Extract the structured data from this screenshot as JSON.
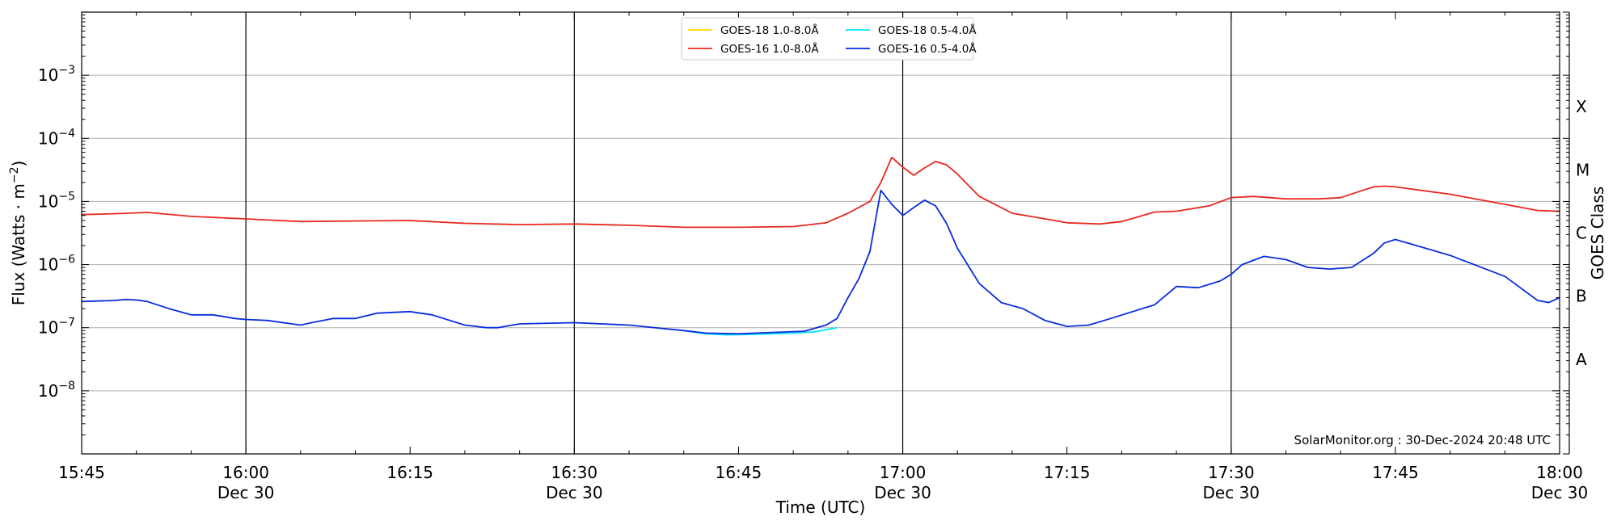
{
  "chart_data": {
    "type": "line",
    "xlabel": "Time (UTC)",
    "ylabel": "Flux (Watts · m⁻²)",
    "right_label": "GOES Class",
    "yscale": "log",
    "xlim": [
      0,
      135
    ],
    "ylim": [
      1e-09,
      0.01
    ],
    "grid": true,
    "legend_position": "top-center",
    "credit": "SolarMonitor.org : 30-Dec-2024 20:48 UTC",
    "y_ticks": [
      {
        "exp": -8,
        "label": "10",
        "sup": "−8"
      },
      {
        "exp": -7,
        "label": "10",
        "sup": "−7"
      },
      {
        "exp": -6,
        "label": "10",
        "sup": "−6"
      },
      {
        "exp": -5,
        "label": "10",
        "sup": "−5"
      },
      {
        "exp": -4,
        "label": "10",
        "sup": "−4"
      },
      {
        "exp": -3,
        "label": "10",
        "sup": "−3"
      }
    ],
    "x_ticks": [
      {
        "t": 0,
        "time": "15:45",
        "date": ""
      },
      {
        "t": 15,
        "time": "16:00",
        "date": "Dec 30"
      },
      {
        "t": 30,
        "time": "16:15",
        "date": ""
      },
      {
        "t": 45,
        "time": "16:30",
        "date": "Dec 30"
      },
      {
        "t": 60,
        "time": "16:45",
        "date": ""
      },
      {
        "t": 75,
        "time": "17:00",
        "date": "Dec 30"
      },
      {
        "t": 90,
        "time": "17:15",
        "date": ""
      },
      {
        "t": 105,
        "time": "17:30",
        "date": "Dec 30"
      },
      {
        "t": 120,
        "time": "17:45",
        "date": ""
      },
      {
        "t": 135,
        "time": "18:00",
        "date": "Dec 30"
      }
    ],
    "vlines": [
      15,
      45,
      75,
      105
    ],
    "classes": [
      {
        "label": "A",
        "exp": -7.5
      },
      {
        "label": "B",
        "exp": -6.5
      },
      {
        "label": "C",
        "exp": -5.5
      },
      {
        "label": "M",
        "exp": -4.5
      },
      {
        "label": "X",
        "exp": -3.5
      }
    ],
    "series": [
      {
        "name": "GOES-18 1.0-8.0Å",
        "color": "#ffd700",
        "x": [
          0,
          135
        ],
        "y": [
          null,
          null
        ]
      },
      {
        "name": "GOES-18 0.5-4.0Å",
        "color": "#00e5ff",
        "x": [
          55,
          57,
          59,
          61,
          63,
          65,
          67,
          69
        ],
        "y": [
          9e-08,
          8e-08,
          7.7e-08,
          7.8e-08,
          8e-08,
          8.2e-08,
          8.6e-08,
          1e-07
        ]
      },
      {
        "name": "GOES-16 1.0-8.0Å",
        "color": "#e8281e",
        "x": [
          0,
          3,
          6,
          10,
          15,
          20,
          25,
          30,
          35,
          40,
          45,
          50,
          55,
          60,
          65,
          68,
          70,
          72,
          73,
          74,
          75,
          76,
          77,
          78,
          79,
          80,
          82,
          85,
          88,
          90,
          93,
          95,
          98,
          100,
          103,
          105,
          107,
          110,
          113,
          115,
          117,
          118,
          119,
          120,
          125,
          130,
          133,
          135
        ],
        "y": [
          6.2e-06,
          6.4e-06,
          6.7e-06,
          5.8e-06,
          5.3e-06,
          4.8e-06,
          4.9e-06,
          5e-06,
          4.5e-06,
          4.3e-06,
          4.4e-06,
          4.2e-06,
          3.9e-06,
          3.9e-06,
          4e-06,
          4.6e-06,
          6.5e-06,
          1e-05,
          2e-05,
          5e-05,
          3.5e-05,
          2.6e-05,
          3.4e-05,
          4.3e-05,
          3.8e-05,
          2.7e-05,
          1.2e-05,
          6.5e-06,
          5.3e-06,
          4.6e-06,
          4.4e-06,
          4.8e-06,
          6.8e-06,
          7e-06,
          8.5e-06,
          1.15e-05,
          1.2e-05,
          1.1e-05,
          1.1e-05,
          1.15e-05,
          1.5e-05,
          1.7e-05,
          1.75e-05,
          1.7e-05,
          1.3e-05,
          9e-06,
          7.2e-06,
          7e-06
        ]
      },
      {
        "name": "GOES-16 0.5-4.0Å",
        "color": "#0a2cdc",
        "x": [
          0,
          3,
          4,
          5,
          6,
          8,
          10,
          12,
          14,
          15,
          17,
          20,
          21,
          23,
          25,
          27,
          30,
          32,
          35,
          37,
          38,
          40,
          45,
          50,
          55,
          57,
          60,
          63,
          66,
          68,
          69,
          70,
          71,
          72,
          73,
          74,
          75,
          76,
          77,
          78,
          79,
          80,
          82,
          84,
          86,
          88,
          90,
          92,
          94,
          96,
          98,
          100,
          102,
          104,
          105,
          106,
          108,
          110,
          112,
          114,
          116,
          118,
          119,
          120,
          125,
          130,
          133,
          134,
          135
        ],
        "y": [
          2.6e-07,
          2.7e-07,
          2.8e-07,
          2.75e-07,
          2.6e-07,
          2e-07,
          1.6e-07,
          1.6e-07,
          1.4e-07,
          1.35e-07,
          1.3e-07,
          1.1e-07,
          1.2e-07,
          1.4e-07,
          1.4e-07,
          1.7e-07,
          1.8e-07,
          1.6e-07,
          1.1e-07,
          1e-07,
          1e-07,
          1.15e-07,
          1.2e-07,
          1.1e-07,
          9e-08,
          8.2e-08,
          8e-08,
          8.4e-08,
          8.8e-08,
          1.1e-07,
          1.4e-07,
          3e-07,
          6e-07,
          1.6e-06,
          1.5e-05,
          9e-06,
          6e-06,
          8e-06,
          1.05e-05,
          8.5e-06,
          4.5e-06,
          1.8e-06,
          5e-07,
          2.5e-07,
          2e-07,
          1.3e-07,
          1.05e-07,
          1.1e-07,
          1.4e-07,
          1.8e-07,
          2.3e-07,
          4.5e-07,
          4.3e-07,
          5.5e-07,
          7e-07,
          1e-06,
          1.35e-06,
          1.2e-06,
          9e-07,
          8.5e-07,
          9e-07,
          1.5e-06,
          2.2e-06,
          2.5e-06,
          1.4e-06,
          6.5e-07,
          2.7e-07,
          2.5e-07,
          3e-07
        ]
      }
    ]
  }
}
